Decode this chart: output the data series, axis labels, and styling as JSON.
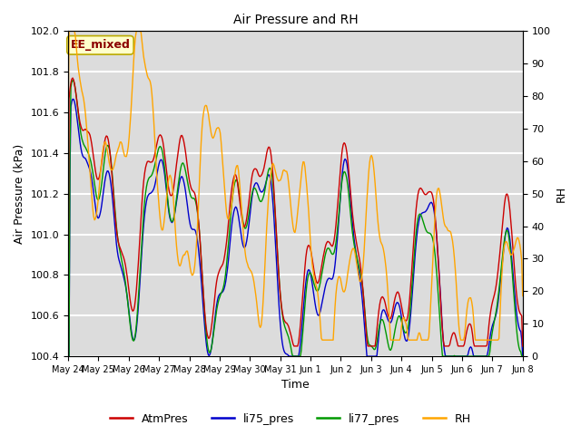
{
  "title": "Air Pressure and RH",
  "ylabel_left": "Air Pressure (kPa)",
  "ylabel_right": "RH",
  "xlabel": "Time",
  "ylim_left": [
    100.4,
    102.0
  ],
  "ylim_right": [
    0,
    100
  ],
  "annotation": "EE_mixed",
  "annotation_color": "#8B0000",
  "annotation_bg": "#FFFFCC",
  "annotation_edge": "#BBAA00",
  "bg_color": "#DCDCDC",
  "grid_color": "white",
  "fig_bg": "white",
  "colors": {
    "AtmPres": "#CC0000",
    "li75_pres": "#0000CC",
    "li77_pres": "#009900",
    "RH": "#FFA500"
  },
  "xtick_labels": [
    "May 24",
    "May 25",
    "May 26",
    "May 27",
    "May 28",
    "May 29",
    "May 30",
    "May 31",
    "Jun 1",
    "Jun 2",
    "Jun 3",
    "Jun 4",
    "Jun 5",
    "Jun 6",
    "Jun 7",
    "Jun 8"
  ],
  "yticks_left": [
    100.4,
    100.6,
    100.8,
    101.0,
    101.2,
    101.4,
    101.6,
    101.8,
    102.0
  ],
  "yticks_right": [
    0,
    10,
    20,
    30,
    40,
    50,
    60,
    70,
    80,
    90,
    100
  ],
  "linewidth": 1.0,
  "title_fontsize": 10,
  "label_fontsize": 9,
  "tick_fontsize": 8,
  "legend_fontsize": 9
}
